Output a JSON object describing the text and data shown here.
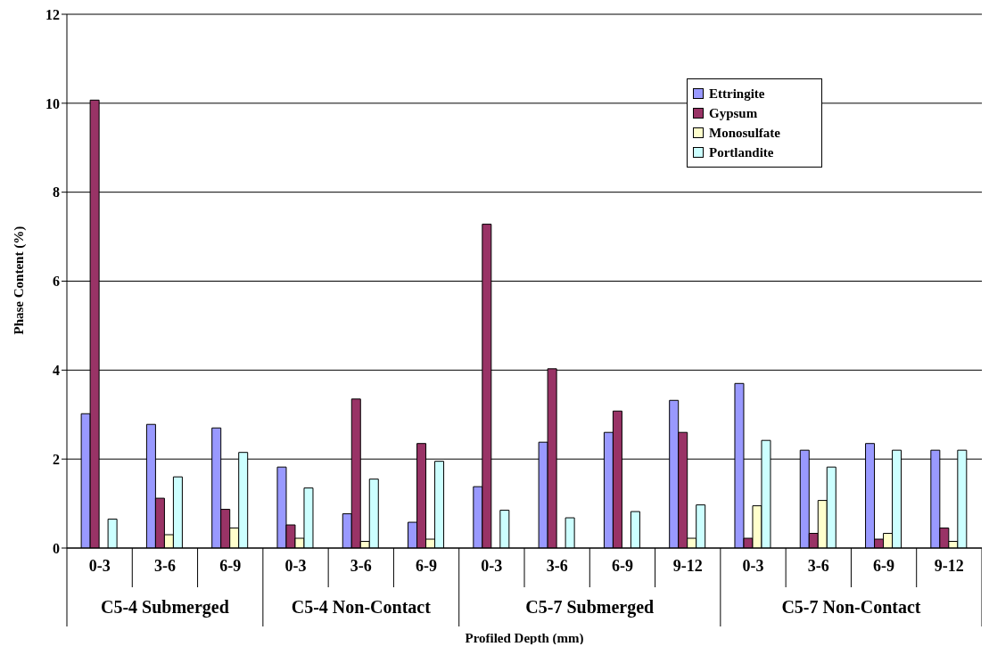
{
  "chart_data": {
    "type": "bar",
    "xlabel": "Profiled Depth (mm)",
    "ylabel": "Phase Content (%)",
    "categories": [
      "0-3",
      "3-6",
      "6-9",
      "0-3",
      "3-6",
      "6-9",
      "0-3",
      "3-6",
      "6-9",
      "9-12",
      "0-3",
      "3-6",
      "6-9",
      "9-12"
    ],
    "annotations": [
      "C5-4 Submerged",
      "C5-4 Non-Contact",
      "C5-7 Submerged",
      "C5-7 Non-Contact"
    ],
    "series": [
      {
        "name": "Ettringite",
        "color": "#9999ff",
        "values": [
          3.02,
          2.78,
          2.7,
          1.82,
          0.77,
          0.58,
          1.38,
          2.38,
          2.6,
          3.32,
          3.7,
          2.2,
          2.35,
          2.2
        ]
      },
      {
        "name": "Gypsum",
        "color": "#993366",
        "values": [
          10.07,
          1.12,
          0.87,
          0.52,
          3.35,
          2.35,
          7.28,
          4.03,
          3.08,
          2.6,
          0.22,
          0.33,
          0.2,
          0.45
        ]
      },
      {
        "name": "Monosulfate",
        "color": "#ffffcc",
        "values": [
          0,
          0.3,
          0.45,
          0.22,
          0.15,
          0.2,
          0,
          0,
          0,
          0.22,
          0.95,
          1.07,
          0.33,
          0.15
        ]
      },
      {
        "name": "Portlandite",
        "color": "#ccffff",
        "values": [
          0.65,
          1.6,
          2.15,
          1.35,
          1.55,
          1.95,
          0.85,
          0.68,
          0.82,
          0.97,
          2.42,
          1.82,
          2.2,
          2.2
        ]
      }
    ],
    "ylim": [
      0,
      12
    ],
    "yticks": [
      0,
      2,
      4,
      6,
      8,
      10,
      12
    ],
    "grid": "y",
    "legend": "top right"
  }
}
